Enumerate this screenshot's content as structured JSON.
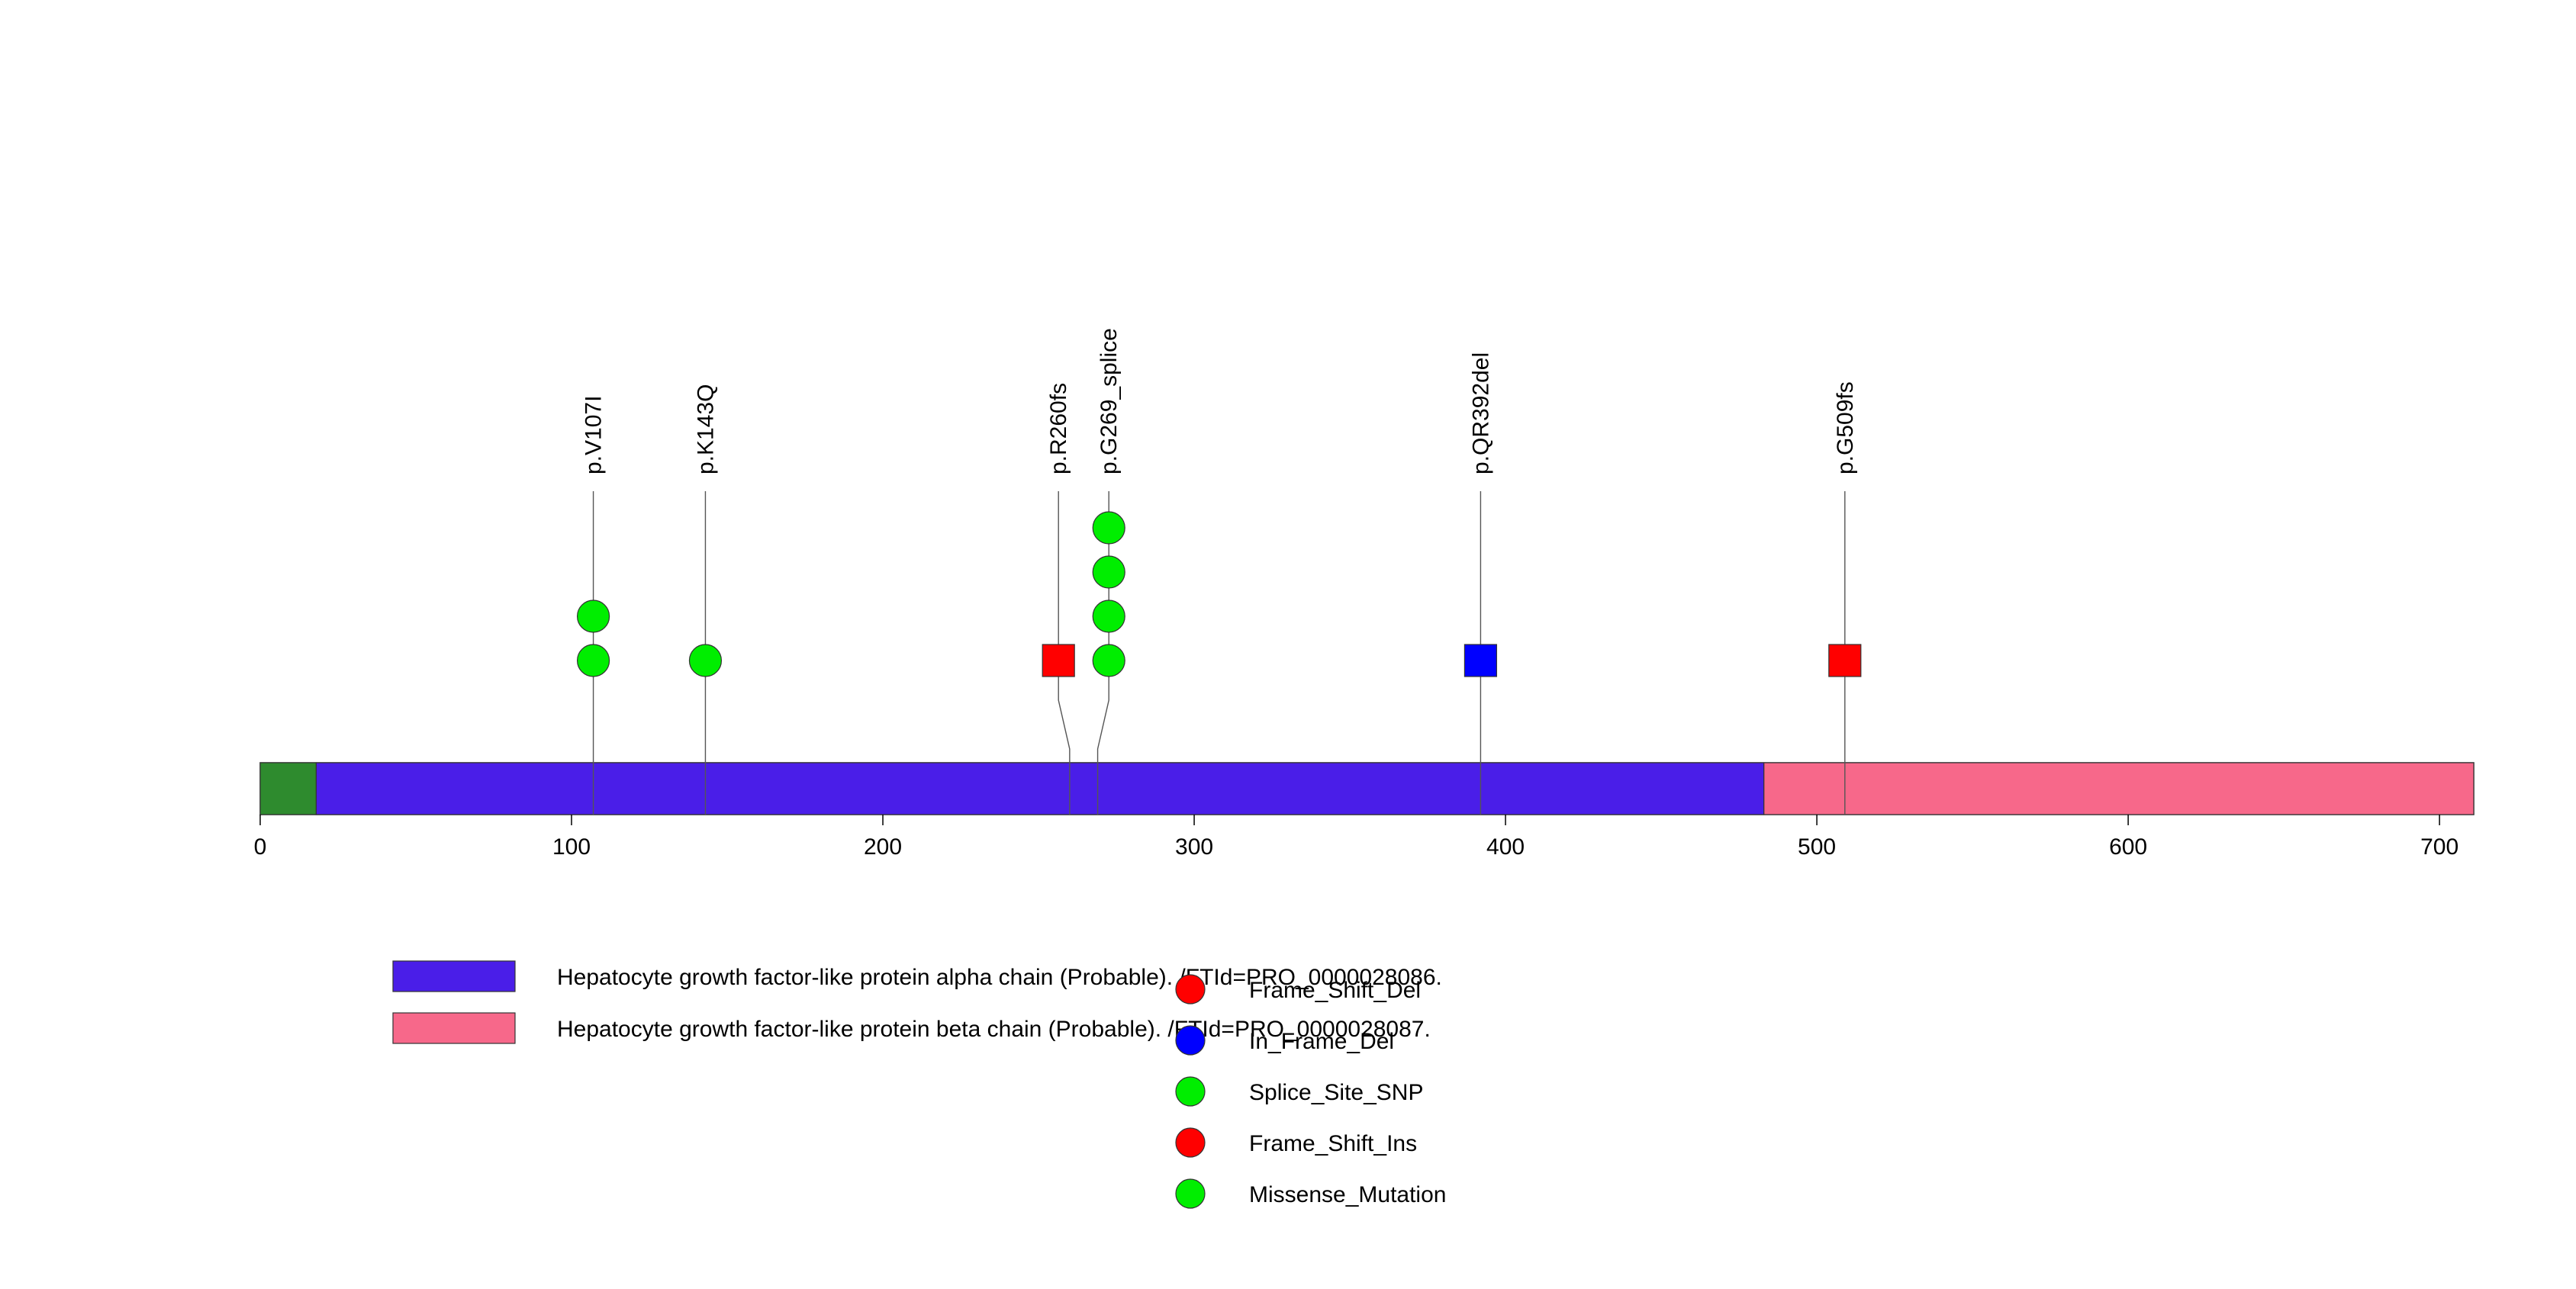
{
  "chart_data": {
    "type": "lollipop",
    "title": "",
    "xlabel": "",
    "ylabel": "",
    "protein_length": 711,
    "xlim": [
      0,
      711
    ],
    "x_ticks": [
      0,
      100,
      200,
      300,
      400,
      500,
      600,
      700
    ],
    "domains": [
      {
        "name": "",
        "start": 1,
        "end": 18,
        "color": "#2e8b2e"
      },
      {
        "name": "Hepatocyte growth factor-like protein alpha chain (Probable). /FTId=PRO_0000028086.",
        "start": 18,
        "end": 483,
        "color": "#4a1ee8"
      },
      {
        "name": "Hepatocyte growth factor-like protein beta chain (Probable). /FTId=PRO_0000028087.",
        "start": 483,
        "end": 711,
        "color": "#f7688a"
      }
    ],
    "mutations": [
      {
        "label": "p.V107I",
        "position": 107,
        "count": 2,
        "type": "Missense_Mutation",
        "shape": "circle",
        "color": "#00ee00"
      },
      {
        "label": "p.K143Q",
        "position": 143,
        "count": 1,
        "type": "Missense_Mutation",
        "shape": "circle",
        "color": "#00ee00"
      },
      {
        "label": "p.R260fs",
        "position": 260,
        "count": 1,
        "type": "Frame_Shift_Del",
        "shape": "square",
        "color": "#ff0000"
      },
      {
        "label": "p.G269_splice",
        "position": 269,
        "count": 4,
        "type": "Splice_Site_SNP",
        "shape": "circle",
        "color": "#00ee00"
      },
      {
        "label": "p.QR392del",
        "position": 392,
        "count": 1,
        "type": "In_Frame_Del",
        "shape": "square",
        "color": "#0000ff"
      },
      {
        "label": "p.G509fs",
        "position": 509,
        "count": 1,
        "type": "Frame_Shift_Ins",
        "shape": "square",
        "color": "#ff0000"
      }
    ],
    "legend_domains": [
      {
        "label": "Hepatocyte growth factor-like protein alpha chain (Probable). /FTId=PRO_0000028086.",
        "color": "#4a1ee8"
      },
      {
        "label": "Hepatocyte growth factor-like protein beta chain (Probable). /FTId=PRO_0000028087.",
        "color": "#f7688a"
      }
    ],
    "legend_mutations": [
      {
        "label": "Frame_Shift_Del",
        "color": "#ff0000"
      },
      {
        "label": "In_Frame_Del",
        "color": "#0000ff"
      },
      {
        "label": "Splice_Site_SNP",
        "color": "#00ee00"
      },
      {
        "label": "Frame_Shift_Ins",
        "color": "#ff0000"
      },
      {
        "label": "Missense_Mutation",
        "color": "#00ee00"
      }
    ]
  }
}
